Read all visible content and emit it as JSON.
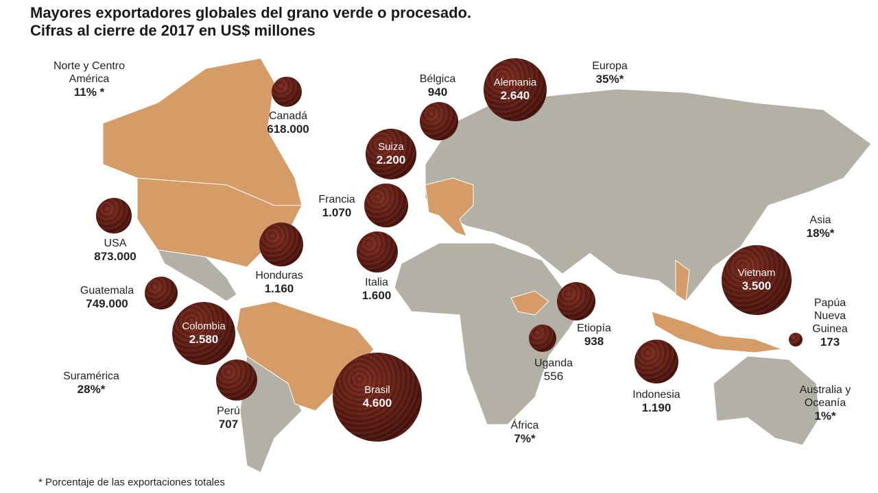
{
  "title": [
    "Mayores exportadores globales del grano verde o procesado.",
    "Cifras al cierre de 2017 en US$ millones"
  ],
  "colors": {
    "land": "#b3b1a5",
    "highlight": "#d69c68",
    "bean": "#5a1810"
  },
  "regions": [
    {
      "name": "Norte y Centro",
      "name2": "América",
      "pct": "11% *"
    },
    {
      "name": "Suramérica",
      "pct": "28%*"
    },
    {
      "name": "Europa",
      "pct": "35%*"
    },
    {
      "name": "Asia",
      "pct": "18%*"
    },
    {
      "name": "África",
      "pct": "7%*"
    },
    {
      "name": "Australia y",
      "name2": "Oceanía",
      "pct": "1%*"
    }
  ],
  "countries": [
    {
      "name": "Canadá",
      "value": "618.000"
    },
    {
      "name": "USA",
      "value": "873.000"
    },
    {
      "name": "Honduras",
      "value": "1.160"
    },
    {
      "name": "Guatemala",
      "value": "749.000"
    },
    {
      "name": "Colombia",
      "value": "2.580"
    },
    {
      "name": "Perú",
      "value": "707"
    },
    {
      "name": "Brasil",
      "value": "4.600"
    },
    {
      "name": "Bélgica",
      "value": "940"
    },
    {
      "name": "Alemania",
      "value": "2.640"
    },
    {
      "name": "Suiza",
      "value": "2.200"
    },
    {
      "name": "Francia",
      "value": "1.070"
    },
    {
      "name": "Italia",
      "value": "1.600"
    },
    {
      "name": "Etiopía",
      "value": "938"
    },
    {
      "name": "Uganda",
      "value": "556"
    },
    {
      "name": "Indonesia",
      "value": "1.190"
    },
    {
      "name": "Vietnam",
      "value": "3.500"
    },
    {
      "name": "Papúa",
      "name2": "Nueva",
      "name3": "Guinea",
      "value": "173"
    }
  ],
  "footnote": "* Porcentaje de las exportaciones totales"
}
